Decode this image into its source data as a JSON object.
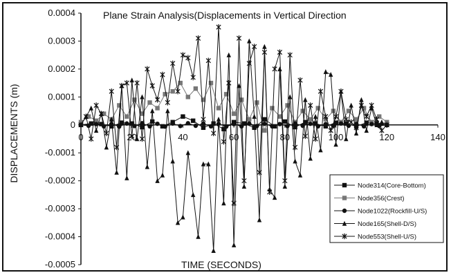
{
  "chart_data": {
    "type": "line",
    "title": "Plane Strain Analysis(Displacements in Vertical Direction",
    "xlabel": "TIME (SECONDS)",
    "ylabel": "DISPLACEMENTS (m)",
    "xlim": [
      0,
      140
    ],
    "ylim": [
      -0.0005,
      0.0004
    ],
    "x_ticks": [
      "0",
      "20",
      "40",
      "60",
      "80",
      "100",
      "120",
      "140"
    ],
    "y_ticks": [
      "0.0004",
      "0.0003",
      "0.0002",
      "0.0001",
      "0",
      "-0.0001",
      "-0.0002",
      "-0.0003",
      "-0.0004",
      "-0.0005"
    ],
    "grid": false,
    "legend_position": "bottom-right",
    "series": [
      {
        "name": "Node314(Core-Bottom)",
        "marker": "square",
        "color": "#111111",
        "x": [
          0,
          4,
          8,
          12,
          16,
          20,
          24,
          28,
          32,
          36,
          40,
          44,
          48,
          52,
          56,
          60,
          64,
          68,
          72,
          76,
          80,
          84,
          88,
          92,
          96,
          100,
          104,
          108,
          112,
          116,
          120
        ],
        "y": [
          0,
          5e-06,
          3e-06,
          -5e-06,
          8e-06,
          5e-06,
          -8e-06,
          1.2e-05,
          -5e-06,
          1e-05,
          3e-05,
          1.5e-05,
          -1e-05,
          5e-06,
          -1.5e-05,
          1e-05,
          5e-06,
          -1e-05,
          2e-05,
          -5e-06,
          1.2e-05,
          -8e-06,
          1e-05,
          5e-06,
          -5e-06,
          8e-06,
          5e-06,
          -5e-06,
          8e-06,
          5e-06,
          0
        ]
      },
      {
        "name": "Node356(Crest)",
        "marker": "square",
        "color": "#777777",
        "x": [
          0,
          3,
          6,
          9,
          12,
          15,
          18,
          21,
          24,
          27,
          30,
          33,
          36,
          39,
          42,
          45,
          48,
          51,
          54,
          57,
          60,
          63,
          66,
          69,
          72,
          75,
          78,
          81,
          84,
          87,
          90,
          93,
          96,
          99,
          102,
          105,
          108,
          111,
          114,
          117,
          120
        ],
        "y": [
          1e-05,
          3e-05,
          1.5e-05,
          4e-05,
          2e-05,
          7e-05,
          3e-05,
          9e-05,
          4e-05,
          8e-05,
          6e-05,
          0.00011,
          0.00012,
          0.00015,
          0.0001,
          0.00013,
          9e-05,
          0.00015,
          6e-05,
          0.00011,
          4e-05,
          9e-05,
          2e-05,
          8e-05,
          -2e-05,
          6e-05,
          3e-05,
          7e-05,
          1e-05,
          5e-05,
          2e-05,
          6e-05,
          2e-05,
          5e-05,
          1e-05,
          5e-05,
          2e-05,
          6e-05,
          1e-05,
          3e-05,
          1e-05
        ]
      },
      {
        "name": "Node1022(RockfiIl-U/S)",
        "marker": "circle",
        "color": "#111111",
        "x": [
          0,
          3,
          6,
          9,
          12,
          15,
          18,
          21,
          24,
          27,
          30,
          33,
          36,
          39,
          42,
          45,
          48,
          51,
          54,
          57,
          60,
          63,
          66,
          69,
          72,
          75,
          78,
          81,
          84,
          87,
          90,
          93,
          96,
          99,
          102,
          105,
          108,
          111,
          114,
          117,
          120
        ],
        "y": [
          0,
          -3e-06,
          3e-06,
          -5e-06,
          4e-06,
          -6e-06,
          5e-06,
          -4e-06,
          6e-06,
          -5e-06,
          4e-06,
          -6e-06,
          5e-06,
          -4e-06,
          6e-06,
          -3e-06,
          5e-06,
          -5e-06,
          4e-06,
          -6e-06,
          3e-06,
          -5e-06,
          5e-06,
          -4e-06,
          4e-06,
          -5e-06,
          3e-06,
          -4e-06,
          5e-06,
          -3e-06,
          4e-06,
          -5e-06,
          3e-06,
          -4e-06,
          5e-06,
          -3e-06,
          4e-06,
          -5e-06,
          3e-06,
          -4e-06,
          0
        ]
      },
      {
        "name": "Node165(Shell-D/S)",
        "marker": "triangle",
        "color": "#111111",
        "x": [
          0,
          2,
          4,
          6,
          8,
          10,
          12,
          14,
          16,
          18,
          20,
          22,
          24,
          26,
          28,
          30,
          32,
          34,
          36,
          38,
          40,
          42,
          44,
          46,
          48,
          50,
          52,
          54,
          56,
          58,
          60,
          62,
          64,
          66,
          68,
          70,
          72,
          74,
          76,
          78,
          80,
          82,
          84,
          86,
          88,
          90,
          92,
          94,
          96,
          98,
          100,
          102,
          104,
          106,
          108,
          110,
          112,
          114,
          116,
          118,
          120
        ],
        "y": [
          0,
          3e-05,
          6e-05,
          -2e-05,
          4e-05,
          -8e-05,
          2e-05,
          -0.00017,
          0.00014,
          -0.00019,
          0.00016,
          -5e-05,
          0.0001,
          -0.00015,
          5e-05,
          -0.0002,
          -0.00018,
          5e-05,
          -0.00013,
          -0.00035,
          -0.00033,
          -0.0001,
          -0.00025,
          -0.0004,
          -0.00014,
          -0.00014,
          -0.00045,
          2e-05,
          -0.00028,
          0.00025,
          -0.00043,
          0.00014,
          -0.00022,
          0.0003,
          3e-05,
          -0.00034,
          0.00028,
          -0.00023,
          -0.00026,
          0.0002,
          -0.00022,
          0.0001,
          -0.00013,
          -0.00018,
          9e-05,
          -0.00012,
          3e-05,
          -9e-05,
          0.00019,
          0.00018,
          -7e-05,
          0.00012,
          -5e-05,
          7e-05,
          -3e-05,
          9e-05,
          -2e-05,
          6e-05,
          0,
          1e-05,
          0
        ]
      },
      {
        "name": "Node553(Shell-U/S)",
        "marker": "star",
        "color": "#111111",
        "x": [
          0,
          2,
          4,
          6,
          8,
          10,
          12,
          14,
          16,
          18,
          20,
          22,
          24,
          26,
          28,
          30,
          32,
          34,
          36,
          38,
          40,
          42,
          44,
          46,
          48,
          50,
          52,
          54,
          56,
          58,
          60,
          62,
          64,
          66,
          68,
          70,
          72,
          74,
          76,
          78,
          80,
          82,
          84,
          86,
          88,
          90,
          92,
          94,
          96,
          98,
          100,
          102,
          104,
          106,
          108,
          110,
          112,
          114,
          116,
          118,
          120
        ],
        "y": [
          0,
          3e-05,
          -5e-05,
          7e-05,
          4e-05,
          -3e-05,
          0.00012,
          -8e-05,
          0.00014,
          0.00015,
          -4e-05,
          0.00015,
          -5e-05,
          0.0002,
          0.00014,
          9e-05,
          0.00018,
          8e-05,
          0.00022,
          0.00012,
          0.00025,
          0.00024,
          0.00017,
          0.00031,
          2e-05,
          0.00023,
          -3e-05,
          0.00035,
          -6e-05,
          0.00015,
          -0.00028,
          0.00031,
          -0.0002,
          0.00022,
          0.00028,
          -0.00017,
          0.00026,
          -0.00024,
          0.0002,
          0.00026,
          -0.0002,
          0.00025,
          -8e-05,
          0.00016,
          -4e-05,
          7e-05,
          -5e-05,
          0.00012,
          3e-05,
          -2e-05,
          3e-05,
          0.00012,
          2e-05,
          1e-05,
          -1e-05,
          7e-05,
          3e-05,
          7e-05,
          2e-05,
          -2e-05,
          0
        ]
      }
    ]
  }
}
